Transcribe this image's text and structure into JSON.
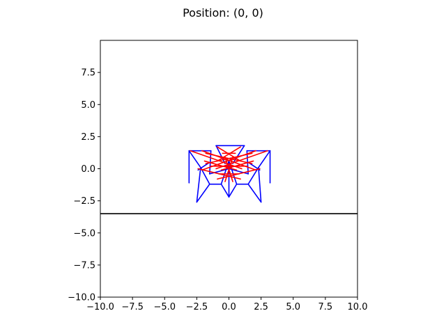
{
  "chart_data": {
    "type": "line",
    "title": "Position: (0, 0)",
    "xlabel": "",
    "ylabel": "",
    "xlim": [
      -10,
      10
    ],
    "ylim": [
      -10,
      10
    ],
    "grid": false,
    "xticks": [
      -10,
      -7.5,
      -5,
      -2.5,
      0,
      2.5,
      5,
      7.5,
      10
    ],
    "xtick_labels": [
      "−10.0",
      "−7.5",
      "−5.0",
      "−2.5",
      "0.0",
      "2.5",
      "5.0",
      "7.5",
      "10.0"
    ],
    "yticks": [
      -10,
      -7.5,
      -5,
      -2.5,
      0,
      2.5,
      5,
      7.5
    ],
    "ytick_labels": [
      "−10.0",
      "−7.5",
      "−5.0",
      "−2.5",
      "0.0",
      "2.5",
      "5.0",
      "7.5"
    ],
    "ground": {
      "y": -3.5,
      "color": "#000000"
    },
    "series": [
      {
        "color": "#0000ff",
        "segments": [
          [
            [
              -3.1,
              1.4
            ],
            [
              -1.4,
              1.4
            ]
          ],
          [
            [
              -3.1,
              1.4
            ],
            [
              -3.1,
              -1.1
            ]
          ],
          [
            [
              -3.1,
              1.4
            ],
            [
              -2.2,
              0.1
            ]
          ],
          [
            [
              -2.2,
              0.1
            ],
            [
              -2.5,
              -2.6
            ]
          ],
          [
            [
              -2.5,
              -2.6
            ],
            [
              -1.5,
              -1.2
            ]
          ],
          [
            [
              -1.5,
              -1.2
            ],
            [
              -0.6,
              -1.2
            ]
          ],
          [
            [
              -0.6,
              -1.2
            ],
            [
              0.0,
              -2.2
            ]
          ],
          [
            [
              0.0,
              -2.2
            ],
            [
              0.6,
              -1.2
            ]
          ],
          [
            [
              0.6,
              -1.2
            ],
            [
              1.5,
              -1.2
            ]
          ],
          [
            [
              1.5,
              -1.2
            ],
            [
              2.5,
              -2.6
            ]
          ],
          [
            [
              2.5,
              -2.6
            ],
            [
              2.3,
              0.1
            ]
          ],
          [
            [
              2.3,
              0.1
            ],
            [
              3.2,
              1.4
            ]
          ],
          [
            [
              3.2,
              1.4
            ],
            [
              1.4,
              1.4
            ]
          ],
          [
            [
              3.2,
              1.4
            ],
            [
              3.2,
              -1.1
            ]
          ],
          [
            [
              -1.0,
              1.8
            ],
            [
              1.2,
              1.8
            ]
          ],
          [
            [
              -1.0,
              1.8
            ],
            [
              -0.3,
              0.4
            ]
          ],
          [
            [
              1.2,
              1.8
            ],
            [
              0.3,
              0.4
            ]
          ],
          [
            [
              -1.4,
              1.4
            ],
            [
              -1.5,
              -0.4
            ]
          ],
          [
            [
              1.4,
              1.4
            ],
            [
              1.5,
              -0.4
            ]
          ],
          [
            [
              -2.2,
              0.1
            ],
            [
              -1.5,
              -1.2
            ]
          ],
          [
            [
              2.3,
              0.1
            ],
            [
              1.5,
              -1.2
            ]
          ],
          [
            [
              -0.6,
              -1.2
            ],
            [
              0.0,
              0.6
            ]
          ],
          [
            [
              0.6,
              -1.2
            ],
            [
              0.0,
              0.6
            ]
          ],
          [
            [
              0.0,
              -2.2
            ],
            [
              0.0,
              0.6
            ]
          ],
          [
            [
              -2.4,
              -0.1
            ],
            [
              -1.5,
              0.5
            ]
          ],
          [
            [
              2.4,
              -0.1
            ],
            [
              1.5,
              0.5
            ]
          ],
          [
            [
              -1.5,
              -0.4
            ],
            [
              0.0,
              0.0
            ]
          ],
          [
            [
              1.5,
              -0.4
            ],
            [
              0.0,
              0.0
            ]
          ]
        ]
      },
      {
        "color": "#ff0000",
        "segments": [
          [
            [
              -2.1,
              1.4
            ],
            [
              2.1,
              -0.1
            ]
          ],
          [
            [
              2.1,
              1.4
            ],
            [
              -2.1,
              -0.1
            ]
          ],
          [
            [
              -3.0,
              1.4
            ],
            [
              1.0,
              0.0
            ]
          ],
          [
            [
              3.0,
              1.4
            ],
            [
              -1.0,
              0.0
            ]
          ],
          [
            [
              -1.8,
              1.2
            ],
            [
              1.8,
              0.4
            ]
          ],
          [
            [
              1.8,
              1.2
            ],
            [
              -1.8,
              0.4
            ]
          ],
          [
            [
              -0.9,
              1.7
            ],
            [
              0.9,
              0.6
            ]
          ],
          [
            [
              0.9,
              1.7
            ],
            [
              -0.9,
              0.6
            ]
          ],
          [
            [
              -2.4,
              0.0
            ],
            [
              0.9,
              -0.8
            ]
          ],
          [
            [
              2.4,
              0.0
            ],
            [
              -0.9,
              -0.8
            ]
          ],
          [
            [
              -1.4,
              0.2
            ],
            [
              1.4,
              0.2
            ]
          ],
          [
            [
              -0.8,
              -0.4
            ],
            [
              0.8,
              -0.4
            ]
          ],
          [
            [
              -0.5,
              1.2
            ],
            [
              0.5,
              1.2
            ]
          ],
          [
            [
              -1.9,
              0.6
            ],
            [
              0.6,
              -0.1
            ]
          ],
          [
            [
              1.9,
              0.6
            ],
            [
              -0.6,
              -0.1
            ]
          ],
          [
            [
              -0.3,
              0.9
            ],
            [
              0.3,
              -1.0
            ]
          ],
          [
            [
              0.3,
              0.9
            ],
            [
              -0.3,
              -1.0
            ]
          ]
        ]
      }
    ]
  }
}
